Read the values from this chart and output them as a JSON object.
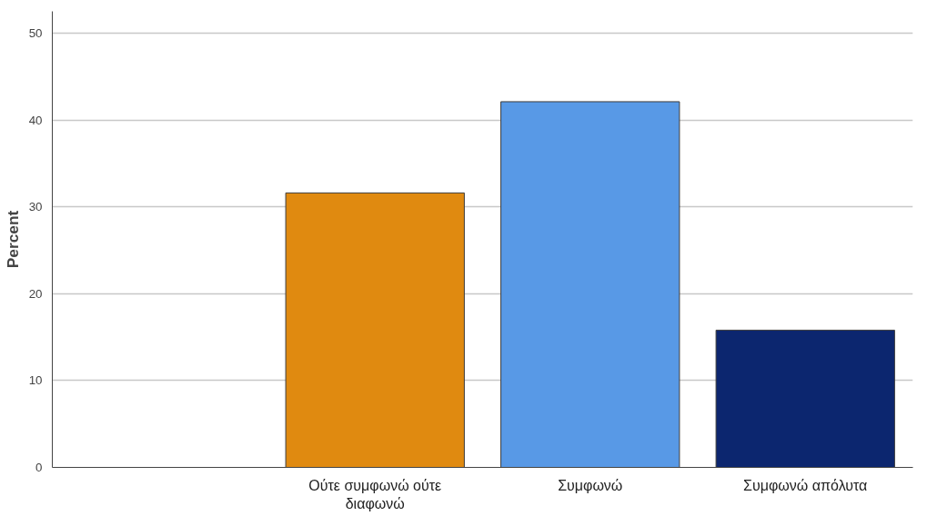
{
  "chart_data": {
    "type": "bar",
    "ylabel": "Percent",
    "categories": [
      null,
      "Ούτε συμφωνώ ούτε διαφωνώ",
      "Συμφωνώ",
      "Συμφωνώ απόλυτα"
    ],
    "values": [
      null,
      31.6,
      42.1,
      15.8
    ],
    "colors": [
      "#e08a10",
      "#e08a10",
      "#5899e6",
      "#0c266f"
    ],
    "ylim": [
      0,
      52.5
    ],
    "yticks": [
      0,
      10,
      20,
      30,
      40,
      50
    ],
    "grid": "y"
  }
}
